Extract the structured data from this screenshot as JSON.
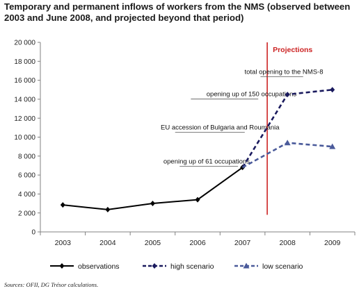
{
  "title": "Temporary and permanent inflows of workers from the NMS (observed between 2003 and June 2008, and projected beyond that period)",
  "source": "Sources: OFII, DG Trésor calculations.",
  "chart_data": {
    "type": "line",
    "x": [
      "2003",
      "2004",
      "2005",
      "2006",
      "2007",
      "2008",
      "2009"
    ],
    "ylim": [
      0,
      20000
    ],
    "yticks": [
      0,
      2000,
      4000,
      6000,
      8000,
      10000,
      12000,
      14000,
      16000,
      18000,
      20000
    ],
    "ytick_labels": [
      "0",
      "2 000",
      "4 000",
      "6 000",
      "8 000",
      "10 000",
      "12 000",
      "14 000",
      "16 000",
      "18 000",
      "20 000"
    ],
    "grid": false,
    "legend_position": "bottom",
    "series": [
      {
        "name": "observations",
        "style": "solid",
        "marker": "diamond",
        "color": "#000000",
        "values": [
          2850,
          2350,
          3000,
          3400,
          6800,
          null,
          null
        ]
      },
      {
        "name": "high scenario",
        "style": "dashed",
        "marker": "diamond",
        "color": "#1a1a5e",
        "values": [
          null,
          null,
          null,
          null,
          6800,
          14500,
          15000
        ]
      },
      {
        "name": "low scenario",
        "style": "dashed",
        "marker": "triangle",
        "color": "#4a5a9a",
        "values": [
          null,
          null,
          null,
          null,
          6800,
          9400,
          9000
        ]
      }
    ],
    "projection": {
      "label": "Projections",
      "x": 2007.55,
      "y_range": [
        1800,
        20000
      ],
      "color": "#cc2222"
    },
    "annotations": [
      {
        "text": "total opening to the NMS-8",
        "x": 2007.92,
        "y": 16950,
        "line_from": 2007.4,
        "line_to": 2008.35
      },
      {
        "text": "opening up of 150 occupations",
        "x": 2007.2,
        "y": 14600,
        "line_from": 2005.85,
        "line_to": 2007.35
      },
      {
        "text": "EU accession of Bulgaria and Roumania",
        "x": 2006.5,
        "y": 11100,
        "line_from": 2005.5,
        "line_to": 2007.05
      },
      {
        "text": "opening up of 61 occupations",
        "x": 2006.2,
        "y": 7500,
        "line_from": 2005.6,
        "line_to": 2006.9
      }
    ]
  }
}
